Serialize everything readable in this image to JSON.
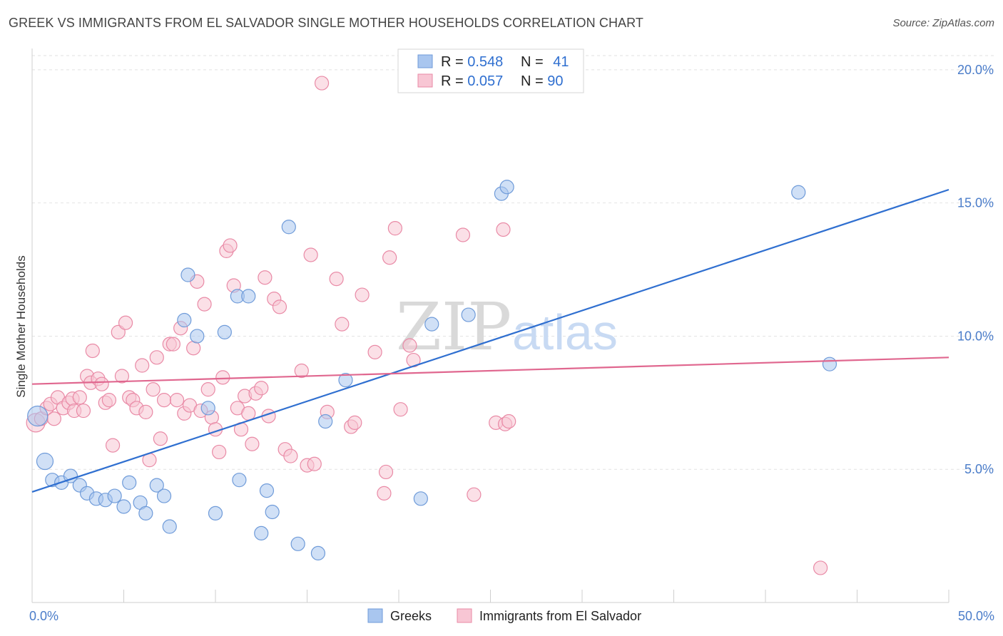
{
  "title": "GREEK VS IMMIGRANTS FROM EL SALVADOR SINGLE MOTHER HOUSEHOLDS CORRELATION CHART",
  "source": "Source: ZipAtlas.com",
  "watermark": {
    "zip": "ZIP",
    "atlas": "atlas"
  },
  "legend": {
    "rows": [
      {
        "r_label": "R = ",
        "r_value": "0.548",
        "n_label": "N = ",
        "n_value": "41"
      },
      {
        "r_label": "R = ",
        "r_value": "0.057",
        "n_label": "N = ",
        "n_value": "90"
      }
    ]
  },
  "chart_data": {
    "type": "scatter",
    "ylabel": "Single Mother Households",
    "xlim": [
      0,
      50
    ],
    "ylim": [
      0,
      20.8
    ],
    "x_tick_labels": [
      {
        "value": 0,
        "label": "0.0%"
      },
      {
        "value": 50,
        "label": "50.0%"
      }
    ],
    "y_tick_labels": [
      {
        "value": 5,
        "label": "5.0%"
      },
      {
        "value": 10,
        "label": "10.0%"
      },
      {
        "value": 15,
        "label": "15.0%"
      },
      {
        "value": 20,
        "label": "20.0%"
      }
    ],
    "grid": true,
    "legend_position": "top-center",
    "series": [
      {
        "name": "Greeks",
        "color": "#a9c6ef",
        "edge": "#6f9bd9",
        "line_color": "#2f6fd0",
        "trend": {
          "x": [
            0,
            50
          ],
          "y": [
            4.15,
            15.5
          ]
        },
        "points": [
          [
            0.3,
            7.0
          ],
          [
            0.7,
            5.3
          ],
          [
            1.1,
            4.6
          ],
          [
            1.6,
            4.5
          ],
          [
            2.1,
            4.75
          ],
          [
            2.6,
            4.4
          ],
          [
            3.0,
            4.1
          ],
          [
            3.5,
            3.9
          ],
          [
            4.0,
            3.85
          ],
          [
            4.5,
            4.0
          ],
          [
            5.0,
            3.6
          ],
          [
            5.3,
            4.5
          ],
          [
            5.9,
            3.75
          ],
          [
            6.2,
            3.35
          ],
          [
            6.8,
            4.4
          ],
          [
            7.2,
            4.0
          ],
          [
            7.5,
            2.85
          ],
          [
            8.3,
            10.6
          ],
          [
            8.5,
            12.3
          ],
          [
            9.0,
            10.0
          ],
          [
            9.6,
            7.3
          ],
          [
            10.0,
            3.35
          ],
          [
            10.5,
            10.15
          ],
          [
            11.2,
            11.5
          ],
          [
            11.3,
            4.6
          ],
          [
            11.8,
            11.5
          ],
          [
            12.5,
            2.6
          ],
          [
            12.8,
            4.2
          ],
          [
            13.1,
            3.4
          ],
          [
            14.0,
            14.1
          ],
          [
            14.5,
            2.2
          ],
          [
            15.6,
            1.85
          ],
          [
            16.0,
            6.8
          ],
          [
            17.1,
            8.35
          ],
          [
            21.2,
            3.9
          ],
          [
            21.8,
            10.45
          ],
          [
            23.8,
            10.8
          ],
          [
            25.6,
            15.35
          ],
          [
            25.9,
            15.6
          ],
          [
            41.8,
            15.4
          ],
          [
            43.5,
            8.95
          ]
        ]
      },
      {
        "name": "Immigrants from El Salvador",
        "color": "#f8c6d4",
        "edge": "#e98aa6",
        "line_color": "#e0678f",
        "trend": {
          "x": [
            0,
            50
          ],
          "y": [
            8.2,
            9.2
          ]
        },
        "points": [
          [
            0.2,
            6.75
          ],
          [
            0.5,
            6.9
          ],
          [
            0.8,
            7.3
          ],
          [
            1.0,
            7.45
          ],
          [
            1.2,
            6.9
          ],
          [
            1.4,
            7.7
          ],
          [
            1.7,
            7.3
          ],
          [
            2.0,
            7.5
          ],
          [
            2.2,
            7.65
          ],
          [
            2.3,
            7.2
          ],
          [
            2.6,
            7.7
          ],
          [
            2.8,
            7.2
          ],
          [
            3.0,
            8.5
          ],
          [
            3.2,
            8.25
          ],
          [
            3.3,
            9.45
          ],
          [
            3.6,
            8.4
          ],
          [
            3.8,
            8.2
          ],
          [
            4.0,
            7.5
          ],
          [
            4.2,
            7.6
          ],
          [
            4.4,
            5.9
          ],
          [
            4.7,
            10.15
          ],
          [
            4.9,
            8.5
          ],
          [
            5.1,
            10.5
          ],
          [
            5.3,
            7.7
          ],
          [
            5.5,
            7.6
          ],
          [
            5.7,
            7.3
          ],
          [
            6.0,
            8.9
          ],
          [
            6.2,
            7.15
          ],
          [
            6.4,
            5.35
          ],
          [
            6.6,
            8.0
          ],
          [
            6.8,
            9.2
          ],
          [
            7.0,
            6.15
          ],
          [
            7.2,
            7.6
          ],
          [
            7.5,
            9.7
          ],
          [
            7.7,
            9.7
          ],
          [
            7.9,
            7.6
          ],
          [
            8.1,
            10.3
          ],
          [
            8.3,
            7.1
          ],
          [
            8.6,
            7.4
          ],
          [
            8.8,
            9.55
          ],
          [
            9.0,
            12.05
          ],
          [
            9.2,
            7.2
          ],
          [
            9.4,
            11.2
          ],
          [
            9.6,
            8.0
          ],
          [
            9.8,
            6.95
          ],
          [
            10.0,
            6.5
          ],
          [
            10.2,
            5.65
          ],
          [
            10.4,
            8.45
          ],
          [
            10.6,
            13.2
          ],
          [
            10.8,
            13.4
          ],
          [
            11.0,
            11.9
          ],
          [
            11.2,
            7.3
          ],
          [
            11.4,
            6.5
          ],
          [
            11.6,
            7.75
          ],
          [
            11.8,
            7.1
          ],
          [
            12.0,
            5.95
          ],
          [
            12.2,
            7.85
          ],
          [
            12.5,
            8.05
          ],
          [
            12.7,
            12.2
          ],
          [
            12.9,
            7.0
          ],
          [
            13.2,
            11.4
          ],
          [
            13.5,
            11.1
          ],
          [
            13.8,
            5.75
          ],
          [
            14.1,
            5.5
          ],
          [
            14.7,
            8.7
          ],
          [
            15.0,
            5.15
          ],
          [
            15.2,
            13.05
          ],
          [
            15.4,
            5.2
          ],
          [
            15.8,
            19.5
          ],
          [
            16.1,
            7.15
          ],
          [
            16.6,
            12.15
          ],
          [
            16.9,
            10.45
          ],
          [
            17.4,
            6.6
          ],
          [
            17.6,
            6.75
          ],
          [
            18.0,
            11.55
          ],
          [
            18.7,
            9.4
          ],
          [
            19.2,
            4.1
          ],
          [
            19.3,
            4.9
          ],
          [
            19.5,
            12.95
          ],
          [
            19.8,
            14.05
          ],
          [
            20.1,
            7.25
          ],
          [
            20.6,
            9.65
          ],
          [
            20.8,
            9.1
          ],
          [
            23.5,
            13.8
          ],
          [
            24.1,
            4.05
          ],
          [
            25.3,
            6.75
          ],
          [
            25.7,
            14.0
          ],
          [
            25.8,
            6.7
          ],
          [
            26.0,
            6.8
          ],
          [
            43.0,
            1.3
          ]
        ]
      }
    ]
  }
}
